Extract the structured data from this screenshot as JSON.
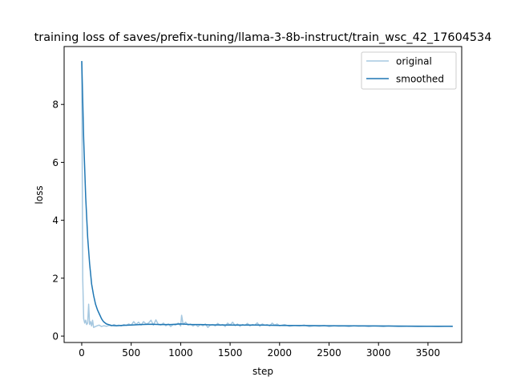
{
  "chart_data": {
    "type": "line",
    "title": "training loss of saves/prefix-tuning/llama-3-8b-instruct/train_wsc_42_17604534",
    "xlabel": "step",
    "ylabel": "loss",
    "xlim": [
      -178,
      3841
    ],
    "ylim": [
      -0.22,
      10.0
    ],
    "xticks": [
      0,
      500,
      1000,
      1500,
      2000,
      2500,
      3000,
      3500
    ],
    "yticks": [
      0,
      2,
      4,
      6,
      8
    ],
    "grid": false,
    "legend": {
      "placement": "top-right",
      "entries": [
        "original",
        "smoothed"
      ]
    },
    "series": [
      {
        "name": "original",
        "color": "#a6c8e0",
        "x": [
          0,
          10,
          20,
          30,
          40,
          50,
          60,
          70,
          80,
          90,
          100,
          110,
          120,
          150,
          175,
          200,
          225,
          250,
          275,
          300,
          325,
          350,
          375,
          400,
          425,
          450,
          475,
          500,
          525,
          550,
          575,
          600,
          625,
          650,
          675,
          700,
          725,
          750,
          775,
          800,
          825,
          850,
          875,
          900,
          925,
          950,
          975,
          1000,
          1010,
          1025,
          1050,
          1075,
          1100,
          1125,
          1150,
          1175,
          1200,
          1225,
          1250,
          1275,
          1300,
          1325,
          1350,
          1375,
          1400,
          1425,
          1450,
          1475,
          1500,
          1525,
          1550,
          1575,
          1600,
          1625,
          1650,
          1675,
          1700,
          1725,
          1750,
          1775,
          1800,
          1825,
          1850,
          1875,
          1900,
          1925,
          1950,
          1975,
          2000,
          2050,
          2100,
          2150,
          2200,
          2250,
          2300,
          2350,
          2400,
          2450,
          2500,
          2550,
          2600,
          2650,
          2700,
          2750,
          2800,
          2850,
          2900,
          2950,
          3000,
          3050,
          3100,
          3150,
          3200,
          3300,
          3400,
          3500,
          3600,
          3700,
          3750
        ],
        "y": [
          9.5,
          2.0,
          0.6,
          0.45,
          0.55,
          0.4,
          0.45,
          1.1,
          0.4,
          0.5,
          0.35,
          0.55,
          0.3,
          0.35,
          0.38,
          0.33,
          0.36,
          0.34,
          0.37,
          0.35,
          0.4,
          0.36,
          0.38,
          0.35,
          0.4,
          0.37,
          0.42,
          0.38,
          0.5,
          0.4,
          0.48,
          0.38,
          0.5,
          0.42,
          0.45,
          0.55,
          0.38,
          0.56,
          0.4,
          0.38,
          0.45,
          0.36,
          0.42,
          0.33,
          0.4,
          0.38,
          0.45,
          0.35,
          0.72,
          0.4,
          0.48,
          0.38,
          0.42,
          0.35,
          0.4,
          0.33,
          0.4,
          0.36,
          0.42,
          0.3,
          0.38,
          0.4,
          0.35,
          0.44,
          0.37,
          0.4,
          0.33,
          0.45,
          0.38,
          0.48,
          0.36,
          0.42,
          0.34,
          0.4,
          0.37,
          0.44,
          0.35,
          0.4,
          0.38,
          0.46,
          0.34,
          0.42,
          0.38,
          0.4,
          0.35,
          0.45,
          0.38,
          0.42,
          0.36,
          0.4,
          0.34,
          0.37,
          0.35,
          0.38,
          0.33,
          0.36,
          0.34,
          0.37,
          0.33,
          0.36,
          0.34,
          0.35,
          0.33,
          0.36,
          0.34,
          0.35,
          0.33,
          0.35,
          0.34,
          0.33,
          0.35,
          0.34,
          0.33,
          0.34,
          0.33,
          0.34,
          0.33,
          0.34,
          0.33
        ]
      },
      {
        "name": "smoothed",
        "color": "#1f77b4",
        "x": [
          0,
          20,
          40,
          60,
          80,
          100,
          120,
          140,
          160,
          180,
          200,
          220,
          250,
          300,
          350,
          400,
          500,
          600,
          700,
          800,
          900,
          1000,
          1100,
          1200,
          1300,
          1500,
          1800,
          2000,
          2500,
          3000,
          3500,
          3750
        ],
        "y": [
          9.5,
          6.8,
          4.8,
          3.4,
          2.5,
          1.8,
          1.4,
          1.1,
          0.9,
          0.75,
          0.6,
          0.5,
          0.42,
          0.37,
          0.36,
          0.37,
          0.38,
          0.4,
          0.41,
          0.4,
          0.4,
          0.42,
          0.4,
          0.4,
          0.39,
          0.38,
          0.38,
          0.37,
          0.36,
          0.35,
          0.34,
          0.34
        ]
      }
    ]
  }
}
